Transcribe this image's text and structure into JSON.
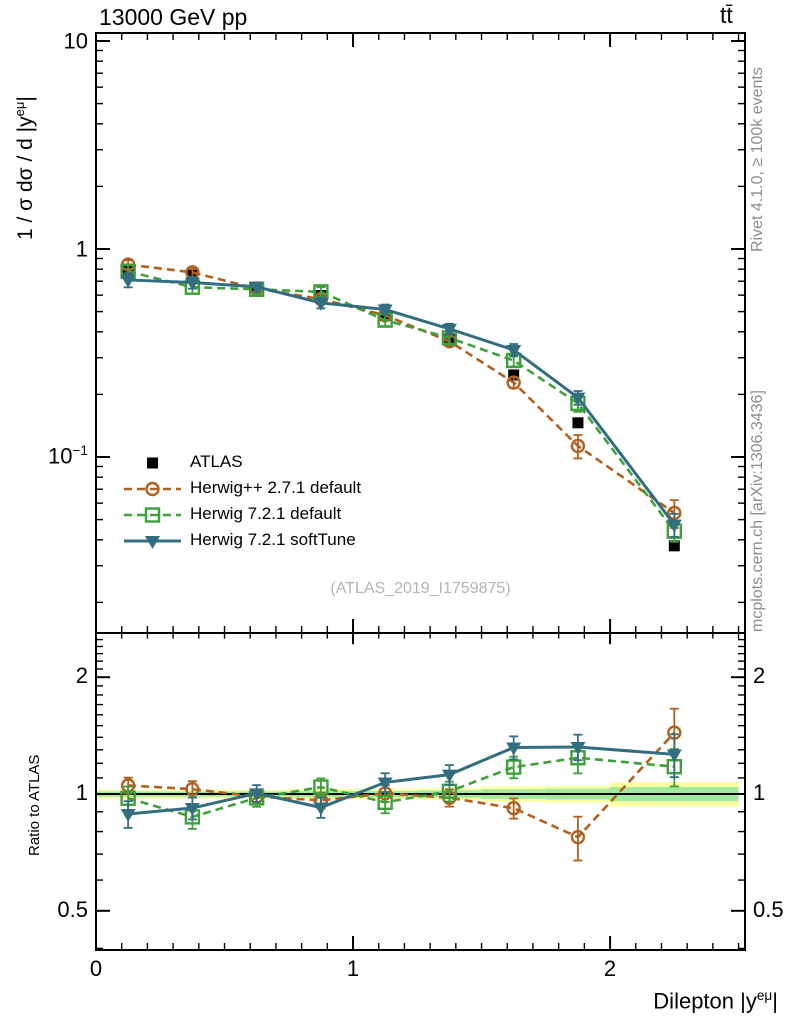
{
  "header": {
    "collision": "13000 GeV pp",
    "process": "tt̄"
  },
  "side_notes": {
    "generator_note": "Rivet 4.1.0, ≥ 100k events",
    "source_note": "mcplots.cern.ch [arXiv:1306.3436]"
  },
  "watermark": "(ATLAS_2019_I1759875)",
  "axes": {
    "main_y_title": {
      "pre": "1 / σ dσ / d |y",
      "sup": "eμ",
      "post": "|"
    },
    "ratio_y_title": "Ratio to ATLAS",
    "x_title": {
      "pre": "Dilepton |y",
      "sup": "eμ",
      "post": "|"
    },
    "main_y_ticks": [
      {
        "base": "10",
        "sup": ""
      },
      {
        "base": "1",
        "sup": ""
      },
      {
        "base": "10",
        "sup": "−1"
      }
    ],
    "ratio_y_ticks": [
      "2",
      "1",
      "0.5"
    ],
    "x_ticks": [
      "0",
      "1",
      "2"
    ]
  },
  "chart_data": {
    "type": "line",
    "title": "13000 GeV pp",
    "subtitle": "tt̄",
    "xlabel": "Dilepton |y^{eμ}|",
    "ylabel_main": "1/σ dσ/d|y^{eμ}|",
    "ylabel_ratio": "Ratio to ATLAS",
    "xlim": [
      0,
      2.525
    ],
    "main_ylim": [
      0.0142,
      10.9
    ],
    "ratio_ylim": [
      0.396,
      2.6
    ],
    "main_scale": "log",
    "ratio_scale": "log",
    "bin_edges": [
      0,
      0.25,
      0.5,
      0.75,
      1.0,
      1.25,
      1.5,
      1.75,
      2.0,
      2.5
    ],
    "x": [
      0.125,
      0.375,
      0.625,
      0.875,
      1.125,
      1.375,
      1.625,
      1.875,
      2.25
    ],
    "series": [
      {
        "name": "ATLAS",
        "marker": "filled-square",
        "color": "#000000",
        "line": "none",
        "values": [
          0.8,
          0.75,
          0.655,
          0.597,
          0.478,
          0.368,
          0.248,
          0.146,
          0.0374
        ]
      },
      {
        "name": "Herwig++ 2.7.1 default",
        "marker": "open-circle",
        "color": "#b2601f",
        "line": "dashed",
        "values": [
          0.842,
          0.772,
          0.645,
          0.575,
          0.48,
          0.36,
          0.228,
          0.113,
          0.0538
        ],
        "ratio": [
          1.052,
          1.029,
          0.985,
          0.963,
          1.004,
          0.978,
          0.919,
          0.774,
          1.439
        ],
        "ratio_err": [
          0.05,
          0.05,
          0.04,
          0.045,
          0.05,
          0.05,
          0.055,
          0.1,
          0.22
        ]
      },
      {
        "name": "Herwig 7.2.1 default",
        "marker": "open-square",
        "color": "#3ea03a",
        "line": "dashed",
        "values": [
          0.78,
          0.655,
          0.64,
          0.622,
          0.455,
          0.374,
          0.291,
          0.181,
          0.044
        ],
        "ratio": [
          0.975,
          0.873,
          0.977,
          1.042,
          0.952,
          1.016,
          1.173,
          1.24,
          1.176
        ],
        "ratio_err": [
          0.07,
          0.06,
          0.05,
          0.055,
          0.06,
          0.06,
          0.075,
          0.11,
          0.13
        ]
      },
      {
        "name": "Herwig 7.2.1 softTune",
        "marker": "filled-triangle-down",
        "color": "#336e80",
        "line": "solid",
        "values": [
          0.71,
          0.69,
          0.658,
          0.551,
          0.512,
          0.413,
          0.327,
          0.193,
          0.0473
        ],
        "ratio": [
          0.888,
          0.92,
          1.004,
          0.923,
          1.071,
          1.122,
          1.318,
          1.322,
          1.265
        ],
        "ratio_err": [
          0.07,
          0.06,
          0.05,
          0.055,
          0.06,
          0.065,
          0.09,
          0.1,
          0.16
        ]
      }
    ],
    "ratio_band": {
      "yellow_half_width": [
        0.025,
        0.025,
        0.025,
        0.03,
        0.03,
        0.035,
        0.045,
        0.05,
        0.072
      ],
      "green_half_width": [
        0.015,
        0.015,
        0.015,
        0.018,
        0.018,
        0.022,
        0.028,
        0.032,
        0.042
      ],
      "yellow_color": "#fdfda2",
      "green_color": "#a2e8a0"
    },
    "legend_position": "center-left"
  }
}
